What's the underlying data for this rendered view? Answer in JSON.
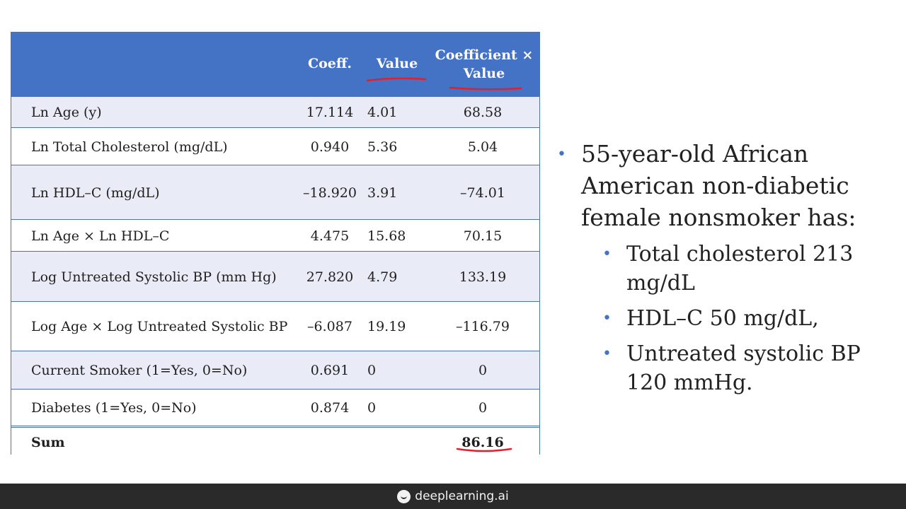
{
  "table": {
    "headers": {
      "coeff": "Coeff.",
      "value": "Value",
      "product_line1": "Coefficient ×",
      "product_line2": "Value"
    },
    "rows": [
      {
        "label": "Ln Age (y)",
        "coeff": "17.114",
        "value": "4.01",
        "product": "68.58"
      },
      {
        "label": "Ln Total Cholesterol (mg/dL)",
        "coeff": "0.940",
        "value": "5.36",
        "product": "5.04"
      },
      {
        "label": "Ln HDL–C (mg/dL)",
        "coeff": "–18.920",
        "value": "3.91",
        "product": "–74.01"
      },
      {
        "label": "Ln Age × Ln HDL–C",
        "coeff": "4.475",
        "value": "15.68",
        "product": "70.15"
      },
      {
        "label": "Log Untreated Systolic BP (mm Hg)",
        "coeff": "27.820",
        "value": "4.79",
        "product": "133.19"
      },
      {
        "label": "Log Age × Log Untreated Systolic BP",
        "coeff": "–6.087",
        "value": "19.19",
        "product": "–116.79"
      },
      {
        "label": "Current Smoker (1=Yes, 0=No)",
        "coeff": "0.691",
        "value": "0",
        "product": "0"
      },
      {
        "label": "Diabetes (1=Yes, 0=No)",
        "coeff": "0.874",
        "value": "0",
        "product": "0"
      }
    ],
    "sum": {
      "label": "Sum",
      "product": "86.16"
    }
  },
  "bullets": {
    "main": "55-year-old African American non-diabetic female nonsmoker has:",
    "sub": [
      "Total cholesterol 213 mg/dL",
      "HDL–C 50 mg/dL,",
      "Untreated systolic BP 120 mmHg."
    ]
  },
  "footer": {
    "brand": "deeplearning.ai"
  },
  "colors": {
    "header_bg": "#4472c4",
    "row_shade": "#e9ecf6",
    "annotation_ink": "#e0202a",
    "footer_bg": "#2a2a2a"
  }
}
